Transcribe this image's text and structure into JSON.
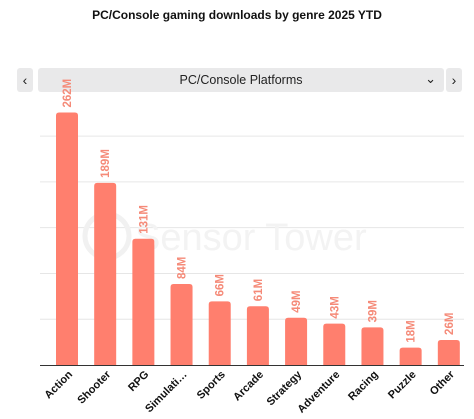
{
  "page": {
    "title": "PC/Console gaming downloads by genre 2025 YTD",
    "dropdown": {
      "selected": "PC/Console Platforms",
      "prev_icon": "chevron-left-icon",
      "next_icon": "chevron-right-icon",
      "expand_icon": "chevron-down-icon"
    },
    "watermark": "Sensor Tower"
  },
  "colors": {
    "bar": "#ff7f6e",
    "bar_label": "#f58a78",
    "grid": "#e6e6e6",
    "watermark": "#f3f3f3"
  },
  "chart_data": {
    "type": "bar",
    "title": "PC/Console gaming downloads by genre 2025 YTD",
    "categories": [
      "Action",
      "Shooter",
      "RPG",
      "Simulati…",
      "Sports",
      "Arcade",
      "Strategy",
      "Adventure",
      "Racing",
      "Puzzle",
      "Other"
    ],
    "values": [
      262,
      189,
      131,
      84,
      66,
      61,
      49,
      43,
      39,
      18,
      26
    ],
    "value_labels": [
      "262M",
      "189M",
      "131M",
      "84M",
      "66M",
      "61M",
      "49M",
      "43M",
      "39M",
      "18M",
      "26M"
    ],
    "ylim": [
      0,
      275
    ],
    "grid": true,
    "legend": "none",
    "xlabel": "",
    "ylabel": ""
  }
}
